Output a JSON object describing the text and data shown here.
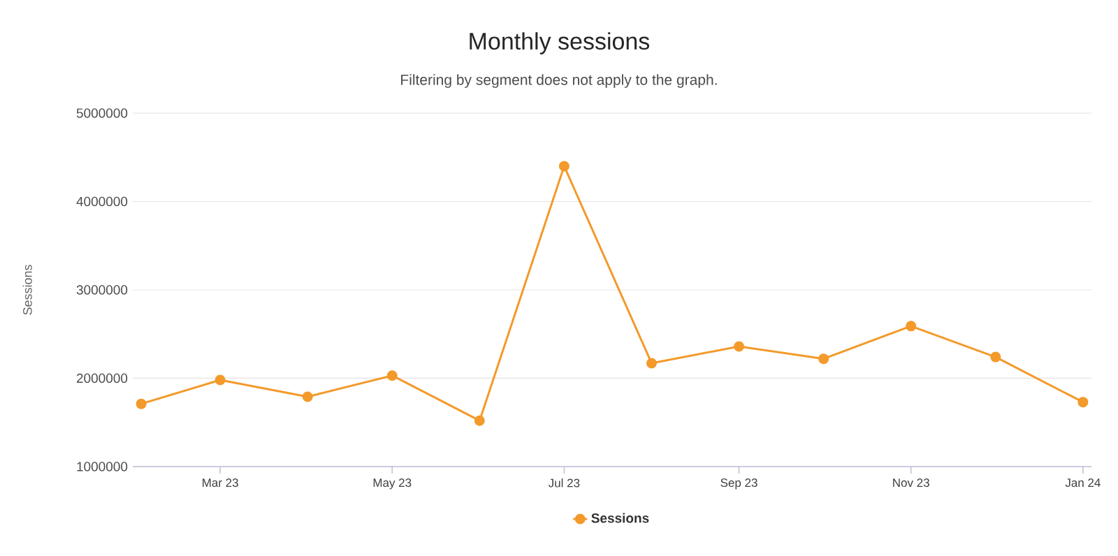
{
  "chart_data": {
    "type": "line",
    "title": "Monthly sessions",
    "subtitle": "Filtering by segment does not apply to the graph.",
    "ylabel": "Sessions",
    "x": [
      "2023-02",
      "2023-03",
      "2023-04",
      "2023-05",
      "2023-06",
      "2023-07",
      "2023-08",
      "2023-09",
      "2023-10",
      "2023-11",
      "2023-12",
      "2024-01"
    ],
    "series": [
      {
        "name": "Sessions",
        "color": "#f39a2b",
        "values": [
          1710000,
          1980000,
          1790000,
          2030000,
          1520000,
          4400000,
          2170000,
          2360000,
          2220000,
          2590000,
          2240000,
          1730000
        ]
      }
    ],
    "xlim": [
      "2023-01-29",
      "2024-01-04"
    ],
    "ylim": [
      1000000,
      5000000
    ],
    "xticks": [
      {
        "value": "2023-03",
        "label": "Mar 23"
      },
      {
        "value": "2023-05",
        "label": "May 23"
      },
      {
        "value": "2023-07",
        "label": "Jul 23"
      },
      {
        "value": "2023-09",
        "label": "Sep 23"
      },
      {
        "value": "2023-11",
        "label": "Nov 23"
      },
      {
        "value": "2024-01",
        "label": "Jan 24"
      }
    ],
    "yticks": [
      1000000,
      2000000,
      3000000,
      4000000,
      5000000
    ],
    "grid": "y",
    "legend": "bottom",
    "marker": "circle",
    "line_style": "solid"
  }
}
